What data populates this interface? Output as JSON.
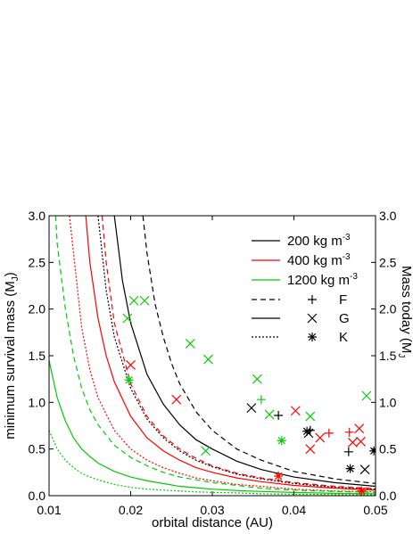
{
  "chart_data": {
    "type": "line",
    "xlabel": "orbital distance (AU)",
    "ylabel": {
      "text": "minimum survival mass (M",
      "sub": "J",
      "tail": ")"
    },
    "y2label": {
      "text": "Mass today (M",
      "sub": "J"
    },
    "xlim": [
      0.01,
      0.05
    ],
    "xticks": [
      0.01,
      0.02,
      0.03,
      0.04,
      0.05
    ],
    "ylim": [
      0,
      3
    ],
    "yticks": [
      {
        "value": 0,
        "label": "0.0"
      },
      {
        "value": 0.5,
        "label": "0.5"
      },
      {
        "value": 1,
        "label": "1.0"
      },
      {
        "value": 1.5,
        "label": "1.5"
      },
      {
        "value": 2,
        "label": "2.0"
      },
      {
        "value": 2.5,
        "label": "2.5"
      },
      {
        "value": 3,
        "label": "3.0"
      }
    ],
    "y2lim": [
      0,
      3
    ],
    "y2ticks": [
      {
        "value": 0,
        "label": "0.0"
      },
      {
        "value": 0.5,
        "label": "0.5"
      },
      {
        "value": 1,
        "label": "1.0"
      },
      {
        "value": 1.5,
        "label": "1.5"
      },
      {
        "value": 2,
        "label": "2.0"
      },
      {
        "value": 2.5,
        "label": "2.5"
      },
      {
        "value": 3,
        "label": "3.0"
      }
    ],
    "legend": [
      {
        "text": "200 kg m",
        "sup": "-3",
        "color": "#000000",
        "dash": "solid"
      },
      {
        "text": "400 kg m",
        "sup": "-3",
        "color": "#ff0000",
        "dash": "solid"
      },
      {
        "text": "1200 kg m",
        "sup": "-3",
        "color": "#00cc00",
        "dash": "solid"
      },
      {
        "text": "F",
        "color": "#000000",
        "dash": "dashed",
        "marker": "+"
      },
      {
        "text": "G",
        "color": "#000000",
        "dash": "solid",
        "marker": "x"
      },
      {
        "text": "K",
        "color": "#000000",
        "dash": "dotted",
        "marker": "*"
      }
    ],
    "series": [
      {
        "type": "line",
        "color": "#000000",
        "dash": "dashed",
        "x": [
          0.0215,
          0.022,
          0.023,
          0.024,
          0.025,
          0.026,
          0.028,
          0.03,
          0.033,
          0.036,
          0.04,
          0.045,
          0.05
        ],
        "values": [
          3.0,
          2.6,
          2.05,
          1.7,
          1.42,
          1.2,
          0.9,
          0.7,
          0.5,
          0.38,
          0.26,
          0.18,
          0.13
        ]
      },
      {
        "type": "line",
        "color": "#000000",
        "dash": "solid",
        "x": [
          0.018,
          0.019,
          0.02,
          0.022,
          0.024,
          0.026,
          0.028,
          0.03,
          0.033,
          0.036,
          0.04,
          0.045,
          0.05
        ],
        "values": [
          3.0,
          2.3,
          1.85,
          1.3,
          0.98,
          0.76,
          0.6,
          0.5,
          0.37,
          0.28,
          0.2,
          0.14,
          0.1
        ]
      },
      {
        "type": "line",
        "color": "#000000",
        "dash": "dotted",
        "x": [
          0.016,
          0.017,
          0.018,
          0.02,
          0.022,
          0.024,
          0.026,
          0.028,
          0.03,
          0.033,
          0.036,
          0.04,
          0.045,
          0.05
        ],
        "values": [
          3.0,
          2.2,
          1.7,
          1.15,
          0.82,
          0.62,
          0.48,
          0.38,
          0.31,
          0.23,
          0.18,
          0.13,
          0.09,
          0.07
        ]
      },
      {
        "type": "line",
        "color": "#ff0000",
        "dash": "dashed",
        "x": [
          0.0165,
          0.017,
          0.018,
          0.02,
          0.022,
          0.024,
          0.026,
          0.028,
          0.03,
          0.033,
          0.036,
          0.04,
          0.045,
          0.05
        ],
        "values": [
          3.0,
          2.5,
          1.85,
          1.2,
          0.85,
          0.64,
          0.5,
          0.4,
          0.32,
          0.24,
          0.19,
          0.14,
          0.1,
          0.075
        ]
      },
      {
        "type": "line",
        "color": "#ff0000",
        "dash": "solid",
        "x": [
          0.0145,
          0.015,
          0.016,
          0.017,
          0.018,
          0.02,
          0.022,
          0.024,
          0.026,
          0.028,
          0.03,
          0.033,
          0.036,
          0.04,
          0.045,
          0.05
        ],
        "values": [
          3.0,
          2.5,
          1.9,
          1.5,
          1.22,
          0.85,
          0.62,
          0.48,
          0.38,
          0.3,
          0.25,
          0.19,
          0.15,
          0.11,
          0.08,
          0.06
        ]
      },
      {
        "type": "line",
        "color": "#ff0000",
        "dash": "dotted",
        "x": [
          0.0125,
          0.013,
          0.014,
          0.015,
          0.016,
          0.018,
          0.02,
          0.022,
          0.024,
          0.026,
          0.028,
          0.03,
          0.033,
          0.036,
          0.04,
          0.045,
          0.05
        ],
        "values": [
          3.0,
          2.6,
          1.8,
          1.35,
          1.05,
          0.7,
          0.5,
          0.38,
          0.3,
          0.24,
          0.19,
          0.16,
          0.12,
          0.1,
          0.07,
          0.05,
          0.04
        ]
      },
      {
        "type": "line",
        "color": "#00cc00",
        "dash": "dashed",
        "x": [
          0.0108,
          0.011,
          0.012,
          0.013,
          0.014,
          0.015,
          0.016,
          0.018,
          0.02,
          0.022,
          0.024,
          0.026,
          0.028,
          0.03,
          0.033,
          0.036,
          0.04,
          0.045,
          0.05
        ],
        "values": [
          3.0,
          2.7,
          2.0,
          1.5,
          1.15,
          0.92,
          0.76,
          0.54,
          0.41,
          0.32,
          0.25,
          0.2,
          0.17,
          0.14,
          0.11,
          0.08,
          0.06,
          0.045,
          0.035
        ]
      },
      {
        "type": "line",
        "color": "#00cc00",
        "dash": "solid",
        "x": [
          0.01,
          0.011,
          0.012,
          0.013,
          0.014,
          0.015,
          0.016,
          0.018,
          0.02,
          0.022,
          0.024,
          0.026,
          0.028,
          0.03,
          0.033,
          0.036,
          0.04,
          0.045,
          0.05
        ],
        "values": [
          1.45,
          1.05,
          0.8,
          0.62,
          0.5,
          0.42,
          0.35,
          0.26,
          0.2,
          0.16,
          0.13,
          0.1,
          0.085,
          0.07,
          0.055,
          0.045,
          0.035,
          0.025,
          0.02
        ]
      },
      {
        "type": "line",
        "color": "#00cc00",
        "dash": "dotted",
        "x": [
          0.01,
          0.011,
          0.012,
          0.013,
          0.014,
          0.015,
          0.016,
          0.018,
          0.02,
          0.022,
          0.024,
          0.026,
          0.028,
          0.03,
          0.033,
          0.036,
          0.04,
          0.045,
          0.05
        ],
        "values": [
          0.7,
          0.5,
          0.38,
          0.3,
          0.24,
          0.2,
          0.17,
          0.12,
          0.09,
          0.07,
          0.06,
          0.05,
          0.04,
          0.035,
          0.03,
          0.02,
          0.015,
          0.012,
          0.01
        ]
      },
      {
        "type": "scatter",
        "axis": "y2",
        "marker": "x",
        "color": "#00cc00",
        "x": [
          0.0196,
          0.0204,
          0.0217,
          0.0273,
          0.0295,
          0.0292,
          0.0355,
          0.042,
          0.0489,
          0.037
        ],
        "values": [
          1.9,
          2.09,
          2.09,
          1.63,
          1.46,
          0.48,
          1.25,
          0.85,
          1.07,
          0.87
        ]
      },
      {
        "type": "scatter",
        "axis": "y2",
        "marker": "+",
        "color": "#00cc00",
        "x": [
          0.036
        ],
        "values": [
          1.03
        ]
      },
      {
        "type": "scatter",
        "axis": "y2",
        "marker": "*",
        "color": "#00cc00",
        "x": [
          0.0198,
          0.0385
        ],
        "values": [
          1.24,
          0.59
        ]
      },
      {
        "type": "scatter",
        "axis": "y2",
        "marker": "x",
        "color": "#ff0000",
        "x": [
          0.02,
          0.0256,
          0.0402,
          0.042,
          0.0432,
          0.0472,
          0.048,
          0.0482
        ],
        "values": [
          1.4,
          1.03,
          0.91,
          0.5,
          0.62,
          0.57,
          0.72,
          0.58
        ]
      },
      {
        "type": "scatter",
        "axis": "y2",
        "marker": "+",
        "color": "#ff0000",
        "x": [
          0.0443,
          0.0468
        ],
        "values": [
          0.67,
          0.68
        ]
      },
      {
        "type": "scatter",
        "axis": "y2",
        "marker": "*",
        "color": "#ff0000",
        "x": [
          0.0381,
          0.0483
        ],
        "values": [
          0.21,
          0.05
        ]
      },
      {
        "type": "scatter",
        "axis": "y2",
        "marker": "x",
        "color": "#000000",
        "x": [
          0.0348,
          0.0418,
          0.0487
        ],
        "values": [
          0.94,
          0.67,
          0.28
        ]
      },
      {
        "type": "scatter",
        "axis": "y2",
        "marker": "+",
        "color": "#000000",
        "x": [
          0.0381,
          0.042,
          0.0467
        ],
        "values": [
          0.86,
          0.7,
          0.47
        ]
      },
      {
        "type": "scatter",
        "axis": "y2",
        "marker": "*",
        "color": "#000000",
        "x": [
          0.0416,
          0.0469,
          0.0498
        ],
        "values": [
          0.69,
          0.29,
          0.48
        ]
      }
    ]
  }
}
